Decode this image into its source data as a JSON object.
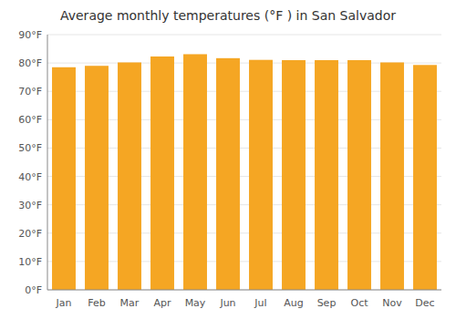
{
  "chart_data": {
    "type": "bar",
    "title": "Average monthly temperatures (°F ) in San Salvador",
    "categories": [
      "Jan",
      "Feb",
      "Mar",
      "Apr",
      "May",
      "Jun",
      "Jul",
      "Aug",
      "Sep",
      "Oct",
      "Nov",
      "Dec"
    ],
    "values": [
      78.5,
      79.0,
      80.2,
      82.3,
      83.1,
      81.7,
      81.1,
      81.0,
      81.0,
      81.0,
      80.2,
      79.3
    ],
    "color": "#F5A623",
    "ylim": [
      0,
      90
    ],
    "yticks": [
      {
        "value": 0,
        "label": "0°F"
      },
      {
        "value": 10,
        "label": "10°F"
      },
      {
        "value": 20,
        "label": "20°F"
      },
      {
        "value": 30,
        "label": "30°F"
      },
      {
        "value": 40,
        "label": "40°F"
      },
      {
        "value": 50,
        "label": "50°F"
      },
      {
        "value": 60,
        "label": "60°F"
      },
      {
        "value": 70,
        "label": "70°F"
      },
      {
        "value": 80,
        "label": "80°F"
      },
      {
        "value": 90,
        "label": "90°F"
      }
    ],
    "grid": true
  }
}
